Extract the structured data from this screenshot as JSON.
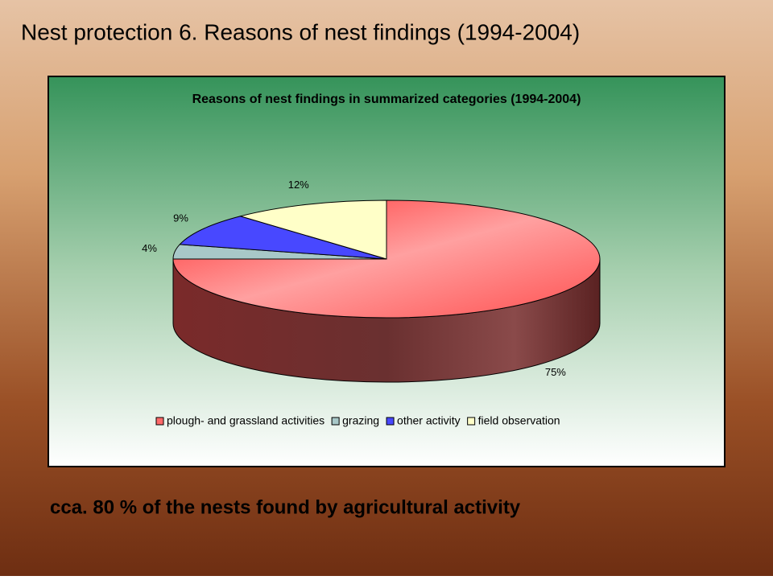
{
  "title": "Nest protection 6. Reasons of nest findings (1994-2004)",
  "chart_data": {
    "type": "pie",
    "title": "Reasons of nest findings in summarized categories (1994-2004)",
    "categories": [
      "plough- and grassland activities",
      "grazing",
      "other activity",
      "field observation"
    ],
    "values": [
      75,
      4,
      9,
      12
    ],
    "value_labels": [
      "75%",
      "4%",
      "9%",
      "12%"
    ],
    "colors": [
      "#ff6a6a",
      "#a8c8c8",
      "#4848ff",
      "#ffffc8"
    ]
  },
  "footer": "cca. 80 % of the nests found by agricultural activity"
}
